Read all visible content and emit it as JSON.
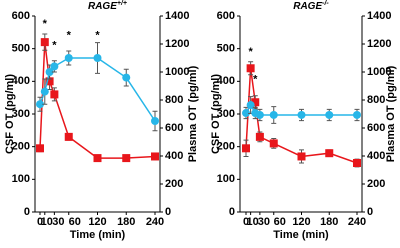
{
  "chart_data": [
    {
      "type": "line",
      "title": "RAGE",
      "title_superscript": "+/+",
      "x_label": "Time (min)",
      "y_label": "CSF OT (pg/ml)",
      "y2_label": "Plasma OT (pg/ml)",
      "xlim": [
        0,
        240
      ],
      "xticks": [
        0,
        10,
        30,
        60,
        120,
        180,
        240
      ],
      "ylim": [
        0,
        600
      ],
      "yticks": [
        0,
        100,
        200,
        300,
        400,
        500,
        600
      ],
      "y2lim": [
        0,
        1400
      ],
      "y2ticks": [
        0,
        200,
        400,
        600,
        800,
        1000,
        1200,
        1400
      ],
      "x": [
        0,
        10,
        20,
        30,
        60,
        120,
        180,
        240
      ],
      "series": [
        {
          "color": "#e8161b",
          "marker": "square",
          "axis": "y",
          "values": [
            195,
            520,
            400,
            360,
            230,
            165,
            165,
            170
          ],
          "errors": [
            10,
            25,
            25,
            20,
            10,
            8,
            8,
            10
          ]
        },
        {
          "color": "#27b6e8",
          "marker": "circle",
          "axis": "y2",
          "values": [
            770,
            860,
            1000,
            1040,
            1100,
            1100,
            960,
            650
          ],
          "errors": [
            50,
            90,
            50,
            40,
            50,
            110,
            60,
            70
          ]
        }
      ],
      "annotations": [
        {
          "text": "*",
          "x": 10,
          "y": 575
        },
        {
          "text": "*",
          "x": 30,
          "y": 510
        },
        {
          "text": "*",
          "x": 60,
          "y": 540
        },
        {
          "text": "*",
          "x": 120,
          "y": 540
        }
      ]
    },
    {
      "type": "line",
      "title": "RAGE",
      "title_superscript": "-/-",
      "x_label": "Time (min)",
      "y_label": "CSF OT (pg/ml)",
      "y2_label": "Plasma OT (pg/ml)",
      "xlim": [
        0,
        240
      ],
      "xticks": [
        0,
        10,
        30,
        60,
        120,
        180,
        240
      ],
      "ylim": [
        0,
        600
      ],
      "yticks": [
        0,
        100,
        200,
        300,
        400,
        500,
        600
      ],
      "y2lim": [
        0,
        1400
      ],
      "y2ticks": [
        0,
        200,
        400,
        600,
        800,
        1000,
        1200,
        1400
      ],
      "x": [
        0,
        10,
        20,
        30,
        60,
        120,
        180,
        240
      ],
      "series": [
        {
          "color": "#e8161b",
          "marker": "square",
          "axis": "y",
          "values": [
            195,
            440,
            336,
            230,
            210,
            170,
            180,
            150
          ],
          "errors": [
            25,
            20,
            20,
            15,
            15,
            20,
            10,
            12
          ]
        },
        {
          "color": "#27b6e8",
          "marker": "circle",
          "axis": "y2",
          "values": [
            707,
            764,
            707,
            693,
            693,
            693,
            693,
            693
          ],
          "errors": [
            40,
            60,
            40,
            40,
            60,
            40,
            40,
            40
          ]
        }
      ],
      "annotations": [
        {
          "text": "*",
          "x": 10,
          "y": 490
        },
        {
          "text": "*",
          "x": 20,
          "y": 405
        }
      ]
    }
  ]
}
